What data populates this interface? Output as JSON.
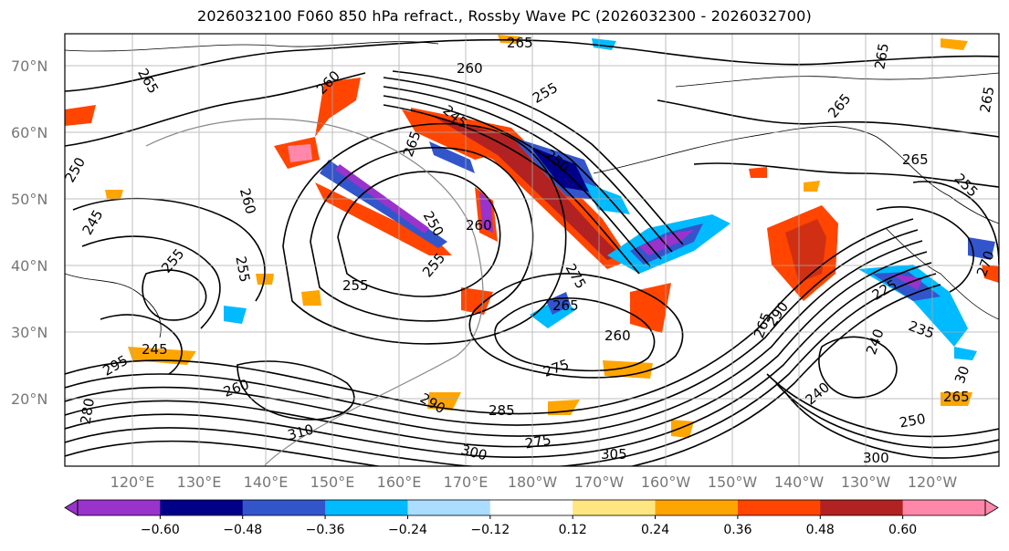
{
  "title": "2026032100 F060 850 hPa refract., Rossby Wave PC (2026032300 - 2026032700)",
  "chart_data": {
    "type": "heatmap",
    "title": "2026032100 F060 850 hPa refract., Rossby Wave PC (2026032300 - 2026032700)",
    "latitude_ticks": [
      "20°N",
      "30°N",
      "40°N",
      "50°N",
      "60°N",
      "70°N"
    ],
    "longitude_ticks": [
      "120°E",
      "130°E",
      "140°E",
      "150°E",
      "160°E",
      "170°E",
      "180°W",
      "170°W",
      "160°W",
      "150°W",
      "140°W",
      "130°W",
      "120°W"
    ],
    "colorbar": {
      "levels": [
        -0.72,
        -0.6,
        -0.48,
        -0.36,
        -0.24,
        -0.12,
        0.12,
        0.24,
        0.36,
        0.48,
        0.6,
        0.72
      ],
      "tick_labels": [
        "−0.60",
        "−0.48",
        "−0.36",
        "−0.24",
        "−0.12",
        "0.12",
        "0.24",
        "0.36",
        "0.48",
        "0.60"
      ],
      "colors": [
        "#9933cc",
        "#000088",
        "#3355cc",
        "#00bbff",
        "#aaddff",
        "#ffffff",
        "#ffe680",
        "#ffa500",
        "#ff4500",
        "#b22222",
        "#ff88aa"
      ],
      "extend": "both"
    },
    "contour_labels": [
      "265",
      "265",
      "260",
      "260",
      "265",
      "255",
      "265",
      "245",
      "265",
      "250",
      "265",
      "265",
      "255",
      "260",
      "245",
      "260",
      "250",
      "255",
      "255",
      "255",
      "275",
      "265",
      "260",
      "255",
      "245",
      "270",
      "225",
      "235",
      "240",
      "260",
      "275",
      "290",
      "285",
      "310",
      "300",
      "305",
      "275",
      "295",
      "280",
      "250",
      "300",
      "265",
      "30",
      "240",
      "250",
      "290",
      "265"
    ],
    "grid": true
  }
}
